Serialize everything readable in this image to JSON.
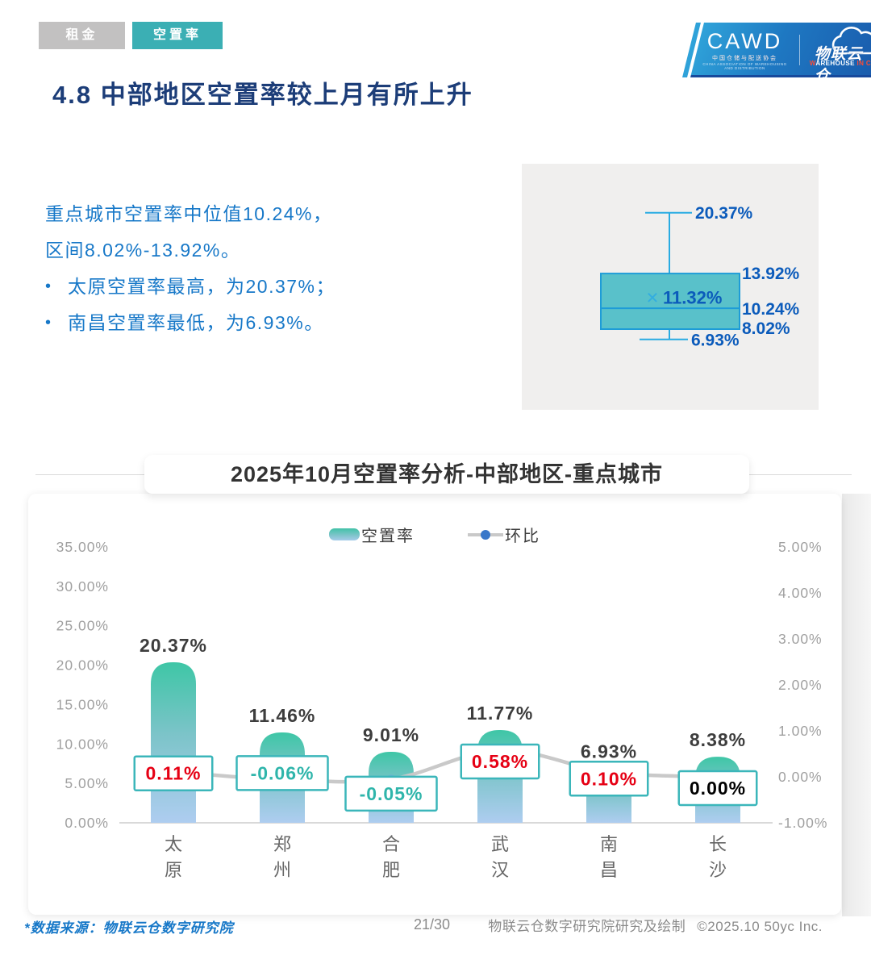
{
  "tabs": [
    {
      "label": "租金"
    },
    {
      "label": "空置率"
    }
  ],
  "logo": {
    "cawd": "CAWD",
    "cawd_sub": "中国仓储与配送协会",
    "cawd_sub_en": "CHINA ASSOCIATION OF WAREHOUSING AND DISTRIBUTION",
    "cloud_name": "物联云仓",
    "cloud_sub_parts": {
      "w": "W",
      "arehouse": "AREHOUSE ",
      "in": "IN",
      "c": " C",
      "loud": "LOUD"
    }
  },
  "page_title": "4.8 中部地区空置率较上月有所上升",
  "summary": {
    "line1": "重点城市空置率中位值10.24%，",
    "line2": "区间8.02%-13.92%。",
    "bullet1": "太原空置率最高，为20.37%；",
    "bullet2": "南昌空置率最低，为6.93%。"
  },
  "boxplot": {
    "max": 20.37,
    "q3": 13.92,
    "mean": 11.32,
    "median": 10.24,
    "q1": 8.02,
    "min": 6.93,
    "unit": "%",
    "colors": {
      "box_fill": "#50bec7",
      "box_border": "#1e9cd7",
      "whisker": "#29abe2",
      "label": "#0b5bbb",
      "mean_mark": "#33ade0"
    }
  },
  "chart_title": "2025年10月空置率分析-中部地区-重点城市",
  "chart_data": {
    "type": "bar+line",
    "title": "2025年10月空置率分析-中部地区-重点城市",
    "categories": [
      "太原",
      "郑州",
      "合肥",
      "武汉",
      "南昌",
      "长沙"
    ],
    "series": [
      {
        "name": "空置率",
        "type": "bar",
        "axis": "left",
        "values": [
          20.37,
          11.46,
          9.01,
          11.77,
          6.93,
          8.38
        ],
        "labels": [
          "20.37%",
          "11.46%",
          "9.01%",
          "11.77%",
          "6.93%",
          "8.38%"
        ]
      },
      {
        "name": "环比",
        "type": "line",
        "axis": "right",
        "values": [
          0.11,
          -0.06,
          -0.05,
          0.58,
          0.1,
          0.0
        ],
        "labels": [
          "0.11%",
          "-0.06%",
          "-0.05%",
          "0.58%",
          "0.10%",
          "0.00%"
        ]
      }
    ],
    "left_axis": {
      "min": 0,
      "max": 35,
      "ticks": [
        "35.00%",
        "30.00%",
        "25.00%",
        "20.00%",
        "15.00%",
        "10.00%",
        "5.00%",
        "0.00%"
      ]
    },
    "right_axis": {
      "min": -1,
      "max": 5,
      "ticks": [
        "5.00%",
        "4.00%",
        "3.00%",
        "2.00%",
        "1.00%",
        "0.00%",
        "-1.00%"
      ]
    },
    "legend_position": "top",
    "grid": false,
    "colors": {
      "bar_top": "#3ec6a6",
      "bar_mid": "#7cc4c9",
      "bar_bottom": "#aecdf0",
      "line": "#c9c9c9",
      "dot": "#6aa7e0",
      "bar_label": "#3d3d3d",
      "axis_tick": "#a0a0a0",
      "x_label": "#666666",
      "change_pos": "#e60014",
      "change_neg": "#2fb5ab",
      "change_zero": "#000000",
      "change_box_border": "#3bb6ba"
    }
  },
  "footer": {
    "source": "*数据来源：物联云仓数字研究院",
    "page": "21/30",
    "credit": "物联云仓数字研究院研究及绘制",
    "copyright": "©2025.10 50yc Inc."
  }
}
